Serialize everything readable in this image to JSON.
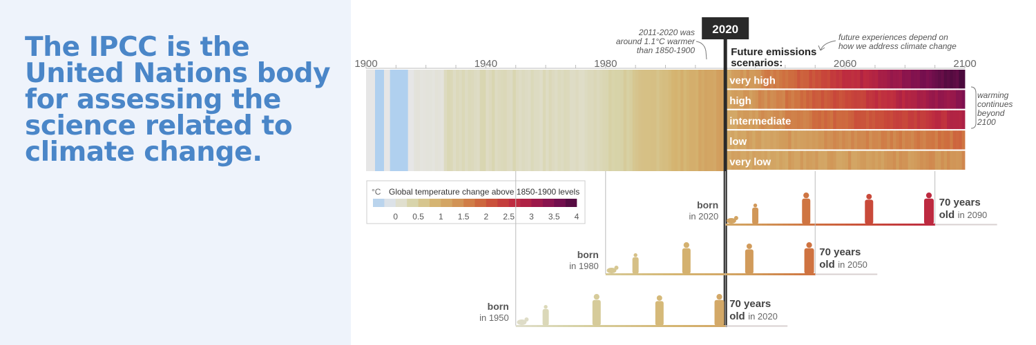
{
  "headline": "The IPCC is the United Nations body for assessing the science related to climate change.",
  "colors": {
    "headline": "#4a86c8",
    "panel_bg": "#eef3fb",
    "scale": [
      "#a9cdf0",
      "#e6e6e6",
      "#d7d3a8",
      "#d5b673",
      "#d19a5a",
      "#cf7240",
      "#c94a3a",
      "#bd2a40",
      "#9e1a4a",
      "#7a1050",
      "#4a0a3c"
    ]
  },
  "chart_data": {
    "type": "heatmap",
    "title": "Global temperature change above 1850-1900 levels",
    "unit_label": "°C",
    "x_ticks": [
      1900,
      1940,
      1980,
      2060,
      2100
    ],
    "x_range": [
      1900,
      2100
    ],
    "marker_label": "2020",
    "future_label": "Future emissions scenarios:",
    "annotation_left": [
      "2011-2020 was",
      "around 1.1°C warmer",
      "than 1850-1900"
    ],
    "annotation_right": [
      "future experiences depend on",
      "how we address climate change"
    ],
    "annotation_side": [
      "warming",
      "continues",
      "beyond",
      "2100"
    ],
    "legend_ticks": [
      "0",
      "0.5",
      "1",
      "1.5",
      "2",
      "2.5",
      "3",
      "3.5",
      "4"
    ],
    "scenarios": [
      {
        "name": "very high",
        "warming_2100": 4.0
      },
      {
        "name": "high",
        "warming_2100": 3.4
      },
      {
        "name": "intermediate",
        "warming_2100": 2.8
      },
      {
        "name": "low",
        "warming_2100": 1.8
      },
      {
        "name": "very low",
        "warming_2100": 1.4
      }
    ],
    "generations": [
      {
        "born_word": "born",
        "born_year": "in 2020",
        "age_top": "70 years",
        "age_word": "old",
        "age_year": "in 2090",
        "start": 2020,
        "end": 2090
      },
      {
        "born_word": "born",
        "born_year": "in 1980",
        "age_top": "70 years",
        "age_word": "old",
        "age_year": "in 2050",
        "start": 1980,
        "end": 2050
      },
      {
        "born_word": "born",
        "born_year": "in 1950",
        "age_top": "70 years",
        "age_word": "old",
        "age_year": "in 2020",
        "start": 1950,
        "end": 2020
      }
    ]
  }
}
